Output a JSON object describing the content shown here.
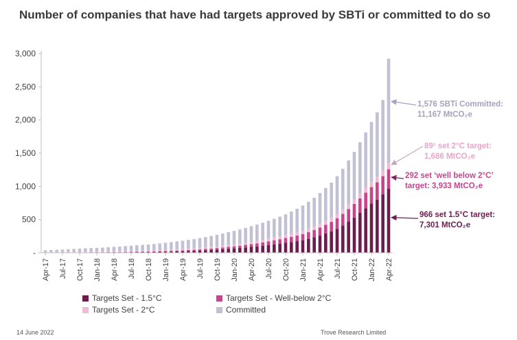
{
  "title": "Number of companies that have had targets approved by SBTi or committed to do so",
  "footer": {
    "date": "14 June 2022",
    "source": "Trove Research Limited"
  },
  "colors": {
    "s15": "#6b1e4e",
    "wb2": "#c8458e",
    "t2": "#efbcd8",
    "committed": "#c2c0d3",
    "axis": "#bfbfbf",
    "text": "#404040"
  },
  "annotations": {
    "committed": {
      "line1": "1,576 SBTi Committed:",
      "line2": "11,167 MtCO₂e"
    },
    "t2": {
      "line1": "89¹ set 2°C target:",
      "line2": "1,686 MtCO₂e"
    },
    "wb2": {
      "line1": "292 set ‘well below 2°C’",
      "line2": "target:  3,933 MtCO₂e"
    },
    "s15": {
      "line1": "966 set 1.5°C target:",
      "line2": "7,301 MtCO₂e"
    }
  },
  "chart_data": {
    "type": "bar",
    "stacked": true,
    "title": "Number of companies that have had targets approved by SBTi or committed to do so",
    "ylim": [
      0,
      3000
    ],
    "yticks": [
      "-",
      "500",
      "1,000",
      "1,500",
      "2,000",
      "2,500",
      "3,000"
    ],
    "xtick_labels": [
      "Apr-17",
      "Jul-17",
      "Oct-17",
      "Jan-18",
      "Apr-18",
      "Jul-18",
      "Oct-18",
      "Jan-19",
      "Apr-19",
      "Jul-19",
      "Oct-19",
      "Jan-20",
      "Apr-20",
      "Jul-20",
      "Oct-20",
      "Jan-21",
      "Apr-21",
      "Jul-21",
      "Oct-21",
      "Jan-22",
      "Apr-22"
    ],
    "categories": [
      "Apr-17",
      "May-17",
      "Jun-17",
      "Jul-17",
      "Aug-17",
      "Sep-17",
      "Oct-17",
      "Nov-17",
      "Dec-17",
      "Jan-18",
      "Feb-18",
      "Mar-18",
      "Apr-18",
      "May-18",
      "Jun-18",
      "Jul-18",
      "Aug-18",
      "Sep-18",
      "Oct-18",
      "Nov-18",
      "Dec-18",
      "Jan-19",
      "Feb-19",
      "Mar-19",
      "Apr-19",
      "May-19",
      "Jun-19",
      "Jul-19",
      "Aug-19",
      "Sep-19",
      "Oct-19",
      "Nov-19",
      "Dec-19",
      "Jan-20",
      "Feb-20",
      "Mar-20",
      "Apr-20",
      "May-20",
      "Jun-20",
      "Jul-20",
      "Aug-20",
      "Sep-20",
      "Oct-20",
      "Nov-20",
      "Dec-20",
      "Jan-21",
      "Feb-21",
      "Mar-21",
      "Apr-21",
      "May-21",
      "Jun-21",
      "Jul-21",
      "Aug-21",
      "Sep-21",
      "Oct-21",
      "Nov-21",
      "Dec-21",
      "Jan-22",
      "Feb-22",
      "Mar-22",
      "Apr-22"
    ],
    "series": [
      {
        "name": "Targets Set - 1.5°C",
        "color": "#6b1e4e",
        "values": [
          3,
          3,
          3,
          3,
          3,
          4,
          4,
          4,
          5,
          5,
          5,
          6,
          6,
          7,
          8,
          9,
          10,
          11,
          12,
          13,
          15,
          17,
          19,
          21,
          24,
          27,
          30,
          34,
          38,
          43,
          48,
          54,
          60,
          66,
          72,
          80,
          88,
          96,
          106,
          116,
          127,
          138,
          150,
          162,
          175,
          190,
          210,
          232,
          260,
          290,
          320,
          360,
          410,
          470,
          530,
          600,
          670,
          740,
          800,
          880,
          966
        ]
      },
      {
        "name": "Targets Set - Well-below 2°C",
        "color": "#c8458e",
        "values": [
          2,
          2,
          2,
          2,
          3,
          3,
          3,
          3,
          4,
          4,
          4,
          5,
          5,
          5,
          6,
          6,
          7,
          7,
          8,
          8,
          9,
          10,
          11,
          12,
          13,
          14,
          15,
          17,
          19,
          21,
          23,
          25,
          28,
          31,
          34,
          38,
          42,
          46,
          50,
          55,
          60,
          66,
          72,
          78,
          84,
          92,
          100,
          110,
          120,
          132,
          145,
          160,
          175,
          190,
          205,
          220,
          235,
          250,
          262,
          275,
          292
        ]
      },
      {
        "name": "Targets Set - 2°C",
        "color": "#efbcd8",
        "values": [
          8,
          8,
          8,
          8,
          9,
          9,
          9,
          10,
          10,
          10,
          11,
          11,
          12,
          12,
          13,
          13,
          14,
          14,
          15,
          16,
          17,
          18,
          19,
          20,
          21,
          22,
          23,
          24,
          25,
          26,
          27,
          28,
          30,
          31,
          32,
          34,
          36,
          38,
          40,
          42,
          44,
          46,
          48,
          50,
          52,
          54,
          56,
          58,
          60,
          62,
          64,
          66,
          68,
          70,
          72,
          75,
          78,
          80,
          83,
          86,
          89
        ]
      },
      {
        "name": "Committed",
        "color": "#c2c0d3",
        "values": [
          24,
          28,
          32,
          35,
          38,
          42,
          46,
          50,
          52,
          55,
          58,
          62,
          66,
          70,
          74,
          78,
          82,
          86,
          90,
          95,
          100,
          106,
          112,
          118,
          124,
          131,
          138,
          146,
          154,
          163,
          172,
          182,
          192,
          202,
          212,
          223,
          234,
          245,
          256,
          268,
          280,
          294,
          310,
          330,
          352,
          376,
          402,
          430,
          460,
          492,
          528,
          568,
          612,
          660,
          712,
          770,
          830,
          900,
          970,
          1060,
          1576
        ]
      }
    ],
    "legend": [
      "Targets Set - 1.5°C",
      "Targets Set - Well-below 2°C",
      "Targets Set - 2°C",
      "Committed"
    ],
    "legend_position": "bottom",
    "grid": false
  }
}
